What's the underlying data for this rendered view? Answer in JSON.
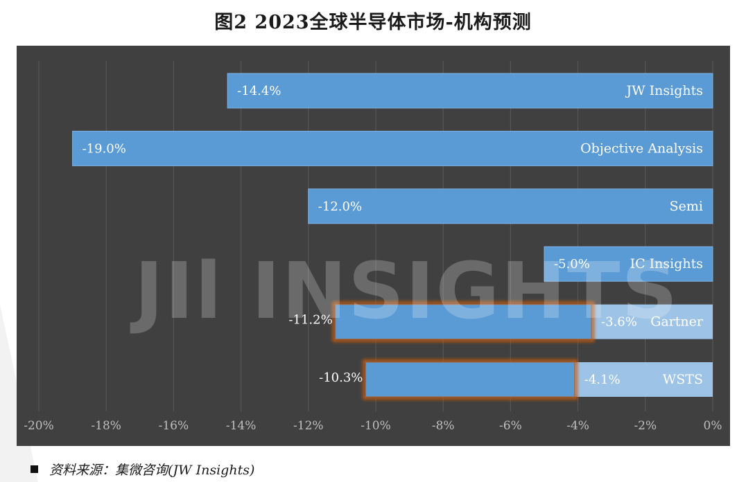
{
  "title": "图2   2023全球半导体市场-机构预测",
  "watermark": "JIl INSIGHTS",
  "source": "资料来源：集微咨询(JW Insights)",
  "colors": {
    "panel": "#404040",
    "bar": "#5b9bd5",
    "bar_light": "#9dc3e6",
    "glow": "#c55a11",
    "grid": "#5a5a5a",
    "tick": "#bfbfbf"
  },
  "chart_data": {
    "type": "bar",
    "orientation": "horizontal",
    "title": "图2   2023全球半导体市场-机构预测",
    "xlim": [
      -20,
      0
    ],
    "x_ticks": [
      "-20%",
      "-18%",
      "-16%",
      "-14%",
      "-12%",
      "-10%",
      "-8%",
      "-6%",
      "-4%",
      "-2%",
      "0%"
    ],
    "categories": [
      "JW Insights",
      "Objective Analysis",
      "Semi",
      "IC Insights",
      "Gartner",
      "WSTS"
    ],
    "series": [
      {
        "name": "",
        "values": [
          -14.4,
          -19.0,
          -12.0,
          -5.0,
          -11.2,
          -10.3
        ],
        "labels": [
          "-14.4%",
          "-19.0%",
          "-12.0%",
          "-5.0%",
          "-11.2%",
          "-10.3%"
        ]
      },
      {
        "name": "",
        "values": [
          null,
          null,
          null,
          null,
          -3.6,
          -4.1
        ],
        "labels": [
          "",
          "",
          "",
          "",
          "-3.6%",
          "-4.1%"
        ]
      }
    ],
    "grid": true
  }
}
